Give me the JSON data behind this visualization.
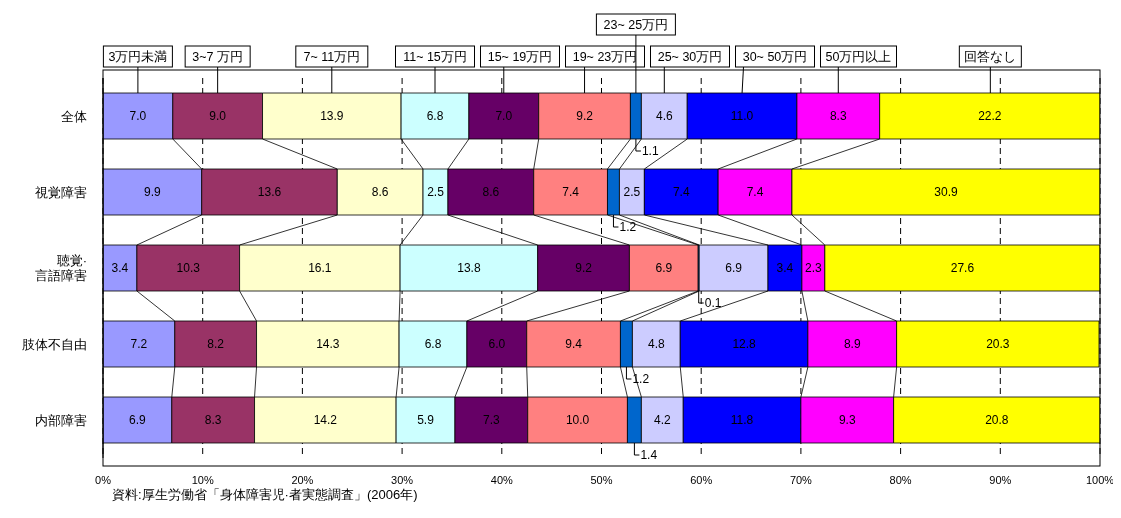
{
  "chart_data": {
    "type": "bar",
    "orientation": "horizontal",
    "stacked": true,
    "grid": "x",
    "legend": "top",
    "categories": [
      "全体",
      "視覚障害",
      "聴覚·\n言語障害",
      "肢体不自由",
      "内部障害"
    ],
    "series": [
      {
        "name": "3万円未満",
        "color": "#9999ff",
        "values": [
          7.0,
          9.9,
          3.4,
          7.2,
          6.9
        ],
        "value_labels": [
          "7.0",
          "9.9",
          "3.4",
          "7.2",
          "6.9"
        ]
      },
      {
        "name": "3~7 万円",
        "color": "#993366",
        "values": [
          9.0,
          13.6,
          10.3,
          8.2,
          8.3
        ],
        "value_labels": [
          "9.0",
          "13.6",
          "10.3",
          "8.2",
          "8.3"
        ]
      },
      {
        "name": "7~ 11万円",
        "color": "#ffffcc",
        "values": [
          13.9,
          8.6,
          16.1,
          14.3,
          14.2
        ],
        "value_labels": [
          "13.9",
          "8.6",
          "16.1",
          "14.3",
          "14.2"
        ]
      },
      {
        "name": "11~ 15万円",
        "color": "#ccffff",
        "values": [
          6.8,
          2.5,
          13.8,
          6.8,
          5.9
        ],
        "value_labels": [
          "6.8",
          "2.5",
          "13.8",
          "6.8",
          "5.9"
        ]
      },
      {
        "name": "15~ 19万円",
        "color": "#660066",
        "values": [
          7.0,
          8.6,
          9.2,
          6.0,
          7.3
        ],
        "value_labels": [
          "7.0",
          "8.6",
          "9.2",
          "6.0",
          "7.3"
        ]
      },
      {
        "name": "19~ 23万円",
        "color": "#ff8080",
        "values": [
          9.2,
          7.4,
          6.9,
          9.4,
          10.0
        ],
        "value_labels": [
          "9.2",
          "7.4",
          "6.9",
          "9.4",
          "10.0"
        ]
      },
      {
        "name": "23~ 25万円",
        "color": "#0066cc",
        "values": [
          1.1,
          1.2,
          0.1,
          1.2,
          1.4
        ],
        "value_labels": [
          "1.1",
          "1.2",
          "0.1",
          "1.2",
          "1.4"
        ]
      },
      {
        "name": "25~ 30万円",
        "color": "#ccccff",
        "values": [
          4.6,
          2.5,
          6.9,
          4.8,
          4.2
        ],
        "value_labels": [
          "4.6",
          "2.5",
          "6.9",
          "4.8",
          "4.2"
        ]
      },
      {
        "name": "30~ 50万円",
        "color": "#0000ff",
        "values": [
          11.0,
          7.4,
          3.4,
          12.8,
          11.8
        ],
        "value_labels": [
          "11.0",
          "7.4",
          "3.4",
          "12.8",
          "11.8"
        ]
      },
      {
        "name": "50万円以上",
        "color": "#ff00ff",
        "values": [
          8.3,
          7.4,
          2.3,
          8.9,
          9.3
        ],
        "value_labels": [
          "8.3",
          "7.4",
          "2.3",
          "8.9",
          "9.3"
        ]
      },
      {
        "name": "回答なし",
        "color": "#ffff00",
        "values": [
          22.2,
          30.9,
          27.6,
          20.3,
          20.8
        ],
        "value_labels": [
          "22.2",
          "30.9",
          "27.6",
          "20.3",
          "20.8"
        ]
      }
    ],
    "xlim": [
      0,
      100
    ],
    "xticks": [
      {
        "value": 0,
        "label": "0%"
      },
      {
        "value": 10,
        "label": "10%"
      },
      {
        "value": 20,
        "label": "20%"
      },
      {
        "value": 30,
        "label": "30%"
      },
      {
        "value": 40,
        "label": "40%"
      },
      {
        "value": 50,
        "label": "50%"
      },
      {
        "value": 60,
        "label": "60%"
      },
      {
        "value": 70,
        "label": "70%"
      },
      {
        "value": 80,
        "label": "80%"
      },
      {
        "value": 90,
        "label": "90%"
      },
      {
        "value": 100,
        "label": "100%"
      }
    ],
    "annotations": [
      "資料:厚生労働省「身体障害児·者実態調査」(2006年)"
    ]
  }
}
